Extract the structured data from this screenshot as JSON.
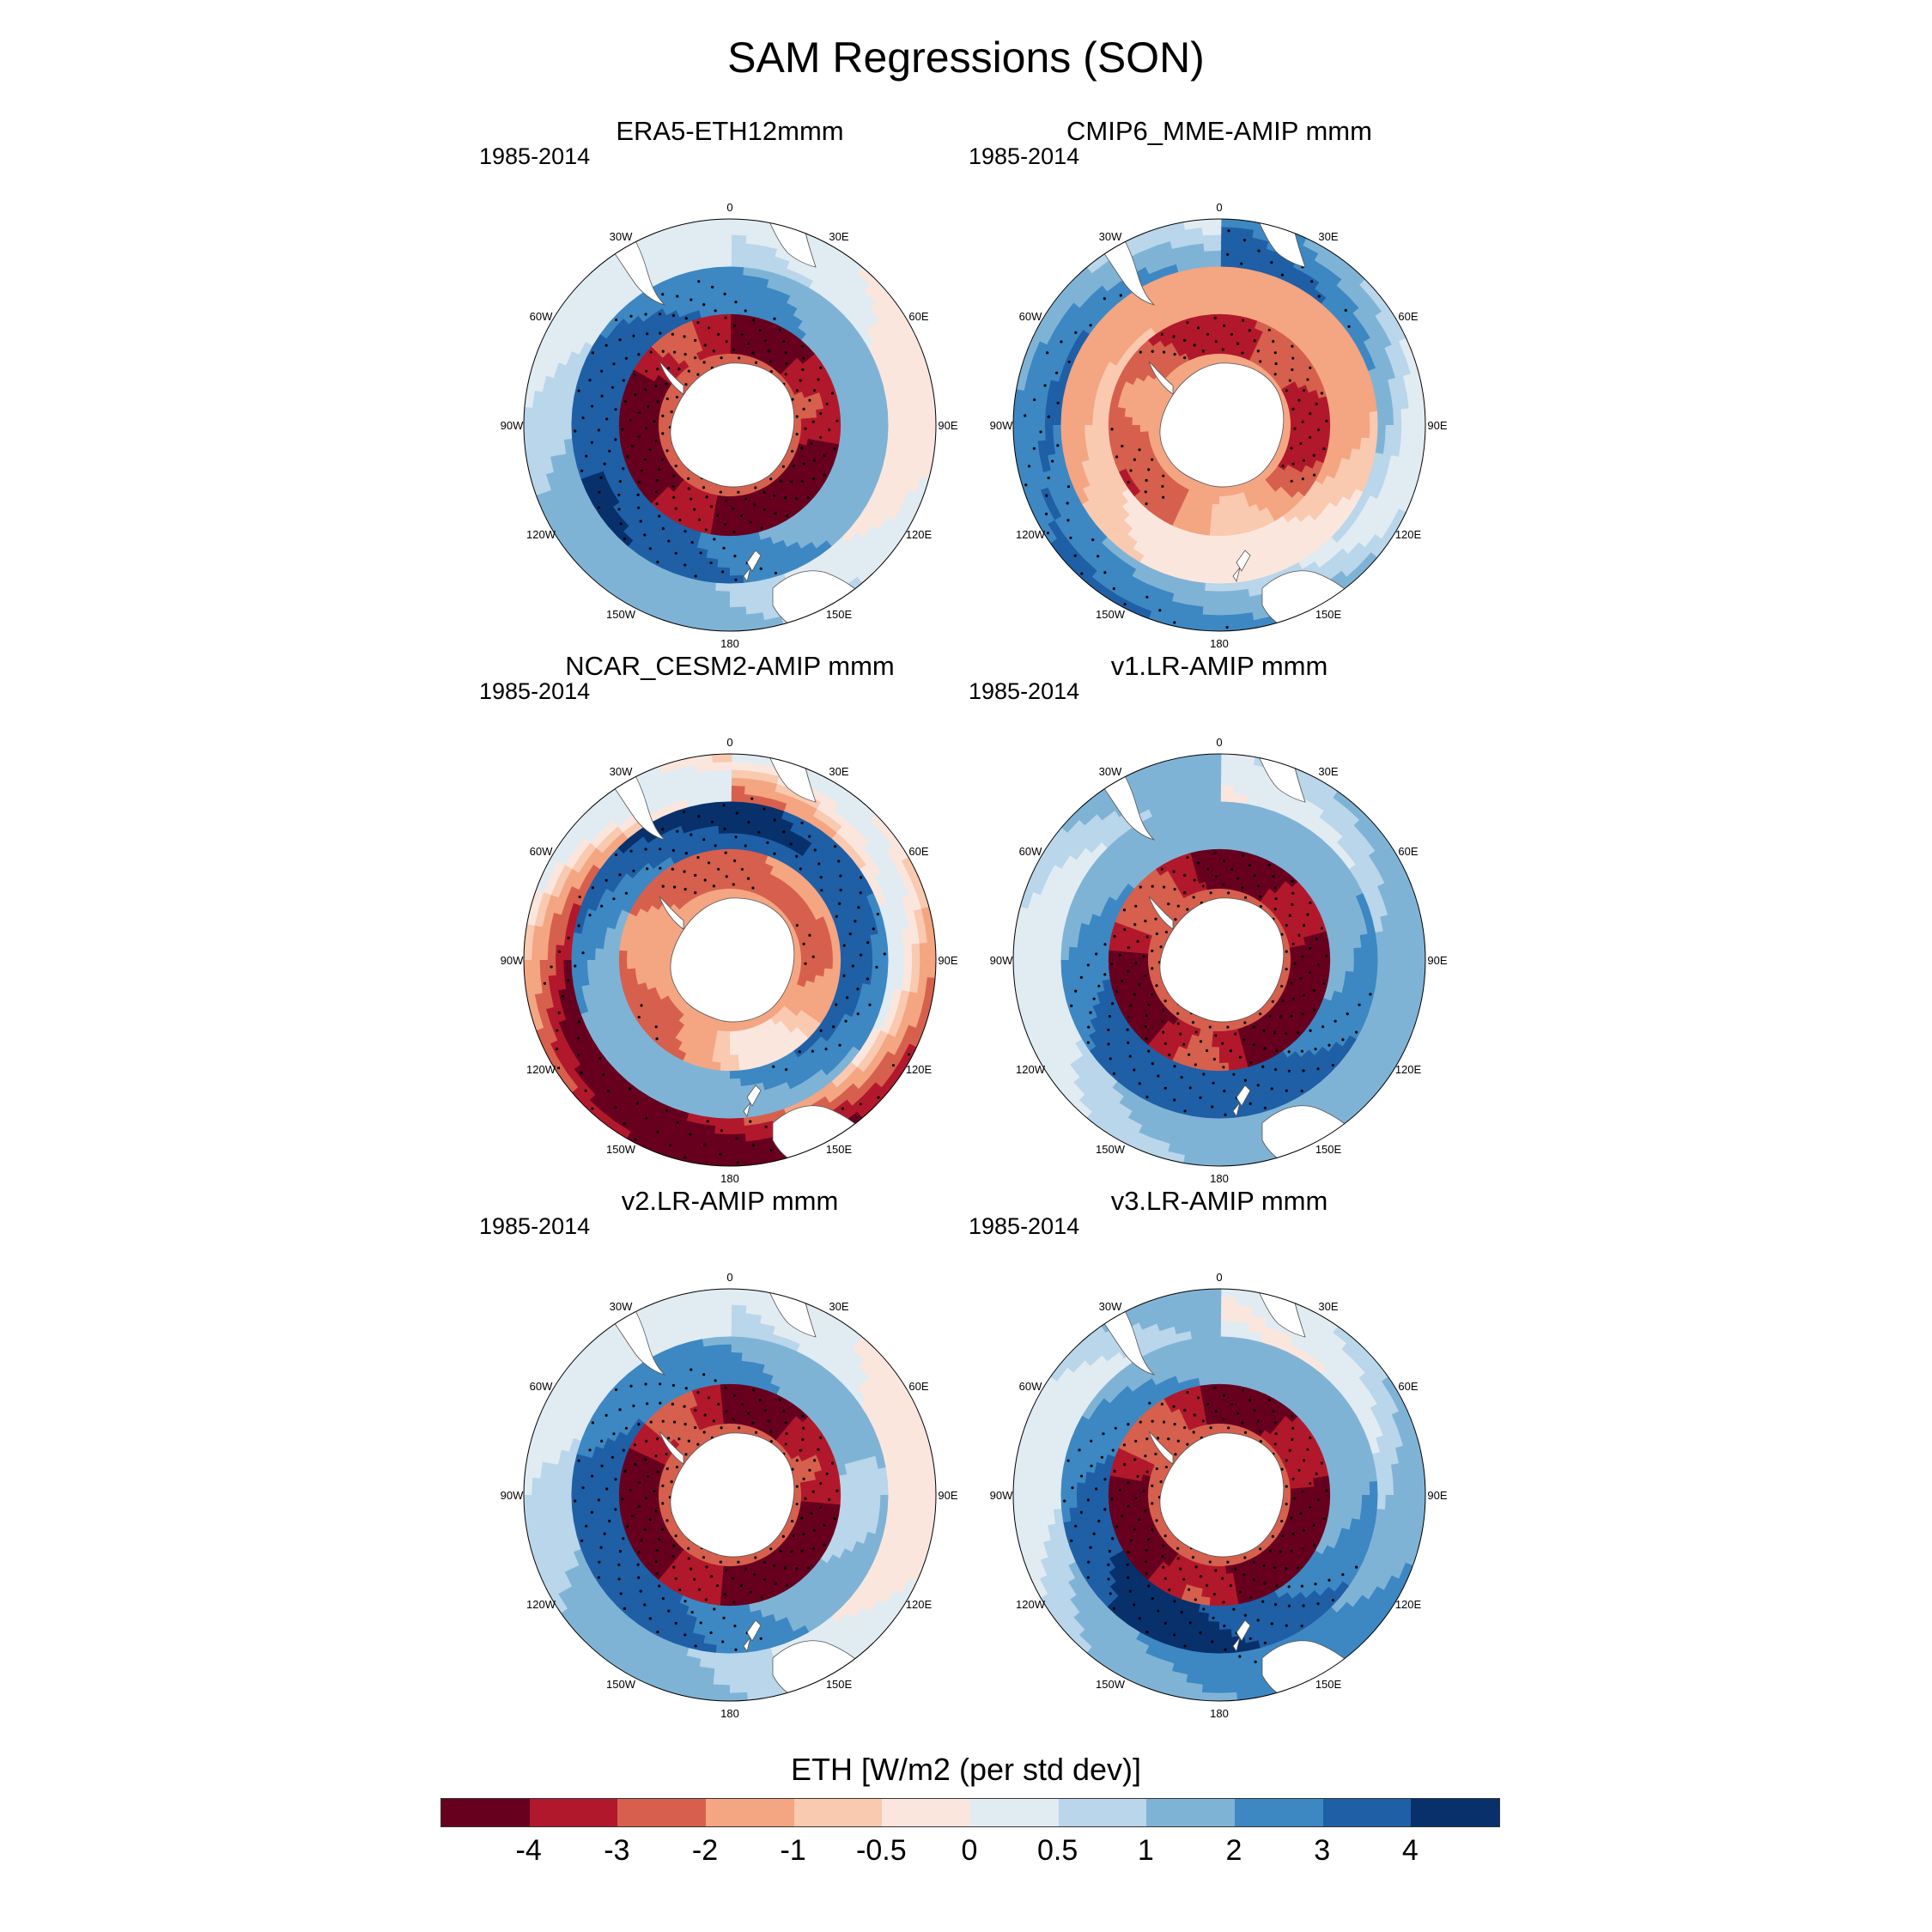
{
  "figure": {
    "title": "SAM Regressions (SON)"
  },
  "panels": [
    {
      "title": "ERA5-ETH12mmm",
      "period": "1985-2014",
      "pattern": "era5"
    },
    {
      "title": "CMIP6_MME-AMIP  mmm",
      "period": "1985-2014",
      "pattern": "cmip6"
    },
    {
      "title": "NCAR_CESM2-AMIP  mmm",
      "period": "1985-2014",
      "pattern": "cesm2"
    },
    {
      "title": "v1.LR-AMIP  mmm",
      "period": "1985-2014",
      "pattern": "v1"
    },
    {
      "title": "v2.LR-AMIP  mmm",
      "period": "1985-2014",
      "pattern": "v2"
    },
    {
      "title": "v3.LR-AMIP  mmm",
      "period": "1985-2014",
      "pattern": "v3"
    }
  ],
  "longitude_labels": [
    "0",
    "30E",
    "60E",
    "90E",
    "120E",
    "150E",
    "180",
    "150W",
    "120W",
    "90W",
    "60W",
    "30W"
  ],
  "colorbar": {
    "title": "ETH [W/m2 (per std dev)]",
    "ticks": [
      "-4",
      "-3",
      "-2",
      "-1",
      "-0.5",
      "0",
      "0.5",
      "1",
      "2",
      "3",
      "4"
    ],
    "colors": [
      "#67001f",
      "#b2182b",
      "#d6604d",
      "#f4a582",
      "#f9c9b0",
      "#fbe6dd",
      "#e1ebf2",
      "#b9d6ea",
      "#7fb3d6",
      "#3d88c2",
      "#1f5fa6",
      "#08306b"
    ]
  },
  "chart_data": {
    "type": "heatmap",
    "title": "SAM Regressions (SON)",
    "projection": "south polar stereographic",
    "variable": "ETH",
    "units": "W/m2 (per std dev)",
    "period": "1985-2014",
    "levels": [
      -4,
      -3,
      -2,
      -1,
      -0.5,
      0,
      0.5,
      1,
      2,
      3,
      4
    ],
    "panels": [
      "ERA5-ETH12mmm",
      "CMIP6_MME-AMIP  mmm",
      "NCAR_CESM2-AMIP  mmm",
      "v1.LR-AMIP  mmm",
      "v2.LR-AMIP  mmm",
      "v3.LR-AMIP  mmm"
    ]
  }
}
